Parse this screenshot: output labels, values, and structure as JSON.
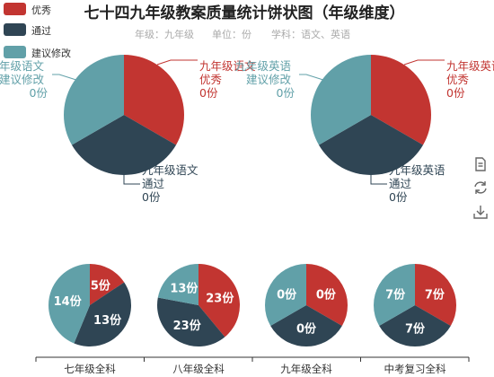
{
  "chart_data": {
    "type": "pie",
    "title": "七十四九年级教案质量统计饼状图（年级维度）",
    "subtitle": {
      "grade": "年级：九年级",
      "unit": "单位：份",
      "subject": "学科：语文、英语"
    },
    "legend": [
      {
        "name": "优秀",
        "color": "#c23531"
      },
      {
        "name": "通过",
        "color": "#2f4554"
      },
      {
        "name": "建议修改",
        "color": "#61a0a8"
      }
    ],
    "top_pies": [
      {
        "name": "九年级语文",
        "values": [
          0,
          0,
          0
        ],
        "labels": {
          "excellent": [
            "九年级语文",
            "优秀",
            "0份"
          ],
          "pass": [
            "九年级语文",
            "通过",
            "0份"
          ],
          "revise": [
            "九年级语文",
            "建议修改",
            "0份"
          ]
        }
      },
      {
        "name": "九年级英语",
        "values": [
          0,
          0,
          0
        ],
        "labels": {
          "excellent": [
            "九年级英语",
            "优秀",
            "0份"
          ],
          "pass": [
            "九年级英语",
            "通过",
            "0份"
          ],
          "revise": [
            "九年级英语",
            "建议修改",
            "0份"
          ]
        }
      }
    ],
    "bottom_pies": [
      {
        "category": "七年级全科",
        "values": [
          5,
          13,
          14
        ],
        "labels": [
          "5份",
          "13份",
          "14份"
        ]
      },
      {
        "category": "八年级全科",
        "values": [
          23,
          23,
          13
        ],
        "labels": [
          "23份",
          "23份",
          "13份"
        ]
      },
      {
        "category": "九年级全科",
        "values": [
          0,
          0,
          0
        ],
        "labels": [
          "0份",
          "0份",
          "0份"
        ]
      },
      {
        "category": "中考复习全科",
        "values": [
          7,
          7,
          7
        ],
        "labels": [
          "7份",
          "7份",
          "7份"
        ]
      }
    ]
  },
  "toolbox": [
    "data-view-icon",
    "restore-icon",
    "save-image-icon"
  ]
}
